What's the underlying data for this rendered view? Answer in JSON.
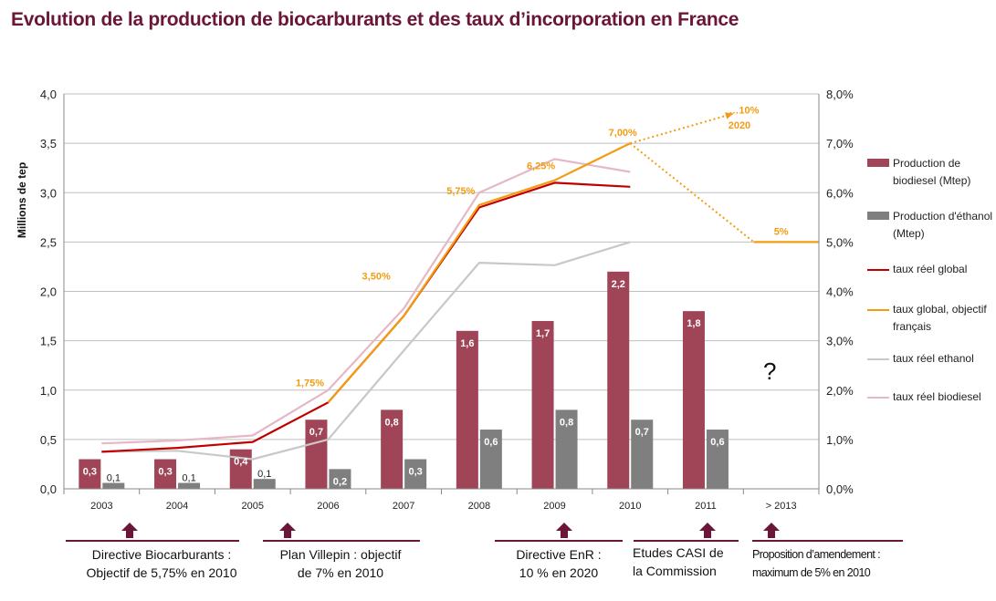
{
  "title": "Evolution de la production de biocarburants et des taux d’incorporation en France",
  "colors": {
    "biodiesel_bar": "#a04458",
    "ethanol_bar": "#7f7f7f",
    "taux_reel_global": "#c00000",
    "taux_global_objectif": "#f39c12",
    "taux_reel_ethanol": "#c8c8c8",
    "taux_reel_biodiesel": "#e6b8c6",
    "title": "#6b1539"
  },
  "chart_data": {
    "type": "bar",
    "categories": [
      "2003",
      "2004",
      "2005",
      "2006",
      "2007",
      "2008",
      "2009",
      "2010",
      "2011",
      "> 2013"
    ],
    "ylabel": "Millions de tep",
    "ylim": [
      0,
      4.0
    ],
    "y2lim": [
      0,
      8.0
    ],
    "y_ticks": [
      "0,0",
      "0,5",
      "1,0",
      "1,5",
      "2,0",
      "2,5",
      "3,0",
      "3,5",
      "4,0"
    ],
    "y2_ticks": [
      "0,0%",
      "1,0%",
      "2,0%",
      "3,0%",
      "4,0%",
      "5,0%",
      "6,0%",
      "7,0%",
      "8,0%"
    ],
    "grid": true,
    "legend_position": "right",
    "bar_series": [
      {
        "name": "Production de biodiesel (Mtep)",
        "values": [
          0.3,
          0.3,
          0.4,
          0.7,
          0.8,
          1.6,
          1.7,
          2.2,
          1.8,
          null
        ],
        "labels": [
          "0,3",
          "0,3",
          "0,4",
          "0,7",
          "0,8",
          "1,6",
          "1,7",
          "2,2",
          "1,8",
          ""
        ]
      },
      {
        "name": "Production d'éthanol (Mtep)",
        "values": [
          0.06,
          0.06,
          0.1,
          0.2,
          0.3,
          0.6,
          0.8,
          0.7,
          0.6,
          null
        ],
        "labels": [
          "0,1",
          "0,1",
          "0,1",
          "0,2",
          "0,3",
          "0,6",
          "0,8",
          "0,7",
          "0,6",
          ""
        ]
      }
    ],
    "line_series": [
      {
        "name": "taux réel global",
        "axis": "right",
        "values": [
          0.75,
          0.83,
          0.95,
          1.75,
          3.5,
          5.7,
          6.2,
          6.12,
          null,
          null
        ]
      },
      {
        "name": "taux global, objectif français",
        "axis": "right",
        "values": [
          null,
          null,
          null,
          1.75,
          3.5,
          5.75,
          6.25,
          7.0,
          null,
          5.0
        ]
      },
      {
        "name": "taux réel ethanol",
        "axis": "right",
        "values": [
          0.75,
          0.77,
          0.6,
          1.0,
          2.8,
          4.58,
          4.53,
          5.0,
          null,
          null
        ]
      },
      {
        "name": "taux réel biodiesel",
        "axis": "right",
        "values": [
          0.92,
          0.98,
          1.08,
          2.0,
          3.65,
          6.0,
          6.68,
          6.42,
          null,
          null
        ]
      }
    ],
    "annotations": [
      {
        "text": "1,75%",
        "x": "2006",
        "y": 1.75
      },
      {
        "text": "3,50%",
        "x": "2007",
        "y": 3.5
      },
      {
        "text": "5,75%",
        "x": "2008",
        "y": 5.75
      },
      {
        "text": "6,25%",
        "x": "2009",
        "y": 6.25
      },
      {
        "text": "7,00%",
        "x": "2010",
        "y": 7.0
      },
      {
        "text": "5%",
        "x": "> 2013",
        "y": 5.0
      },
      {
        "text": "…10%",
        "x": "2011",
        "y": 7.6
      },
      {
        "text": "2020",
        "x": "2011",
        "y": 7.3
      }
    ],
    "projections": [
      {
        "from": {
          "x": "2010",
          "y": 7.0
        },
        "to": {
          "x": "2011",
          "y": 7.6
        },
        "style": "dotted"
      },
      {
        "from": {
          "x": "2010",
          "y": 7.0
        },
        "to": {
          "x": "> 2013",
          "y": 5.0
        },
        "style": "dotted"
      }
    ]
  },
  "question_mark": "?",
  "milestones": [
    {
      "label1": "Directive Biocarburants :",
      "label2": "Objectif de 5,75% en 2010"
    },
    {
      "label1": "Plan Villepin : objectif",
      "label2": "de 7%  en 2010"
    },
    {
      "label1": "Directive EnR :",
      "label2": "10 % en 2020"
    },
    {
      "label1": "Etudes CASI de",
      "label2": "la Commission"
    },
    {
      "label1": "Proposition d’amendement :",
      "label2": "maximum de 5% en 2010"
    }
  ]
}
